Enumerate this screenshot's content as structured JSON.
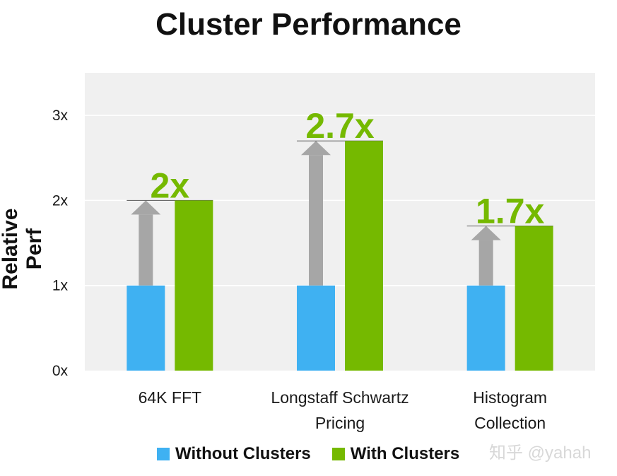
{
  "chart_data": {
    "type": "bar",
    "title": "Cluster Performance",
    "ylabel": "Relative Perf",
    "xlabel": "",
    "ylim": [
      0,
      3.5
    ],
    "yticks": [
      0,
      1,
      2,
      3
    ],
    "ytick_labels": [
      "0x",
      "1x",
      "2x",
      "3x"
    ],
    "categories": [
      [
        "64K FFT"
      ],
      [
        "Longstaff Schwartz",
        "Pricing"
      ],
      [
        "Histogram",
        "Collection"
      ]
    ],
    "series": [
      {
        "name": "Without Clusters",
        "color": "#3fb1f2",
        "values": [
          1,
          1,
          1
        ]
      },
      {
        "name": "With Clusters",
        "color": "#75b900",
        "values": [
          2,
          2.7,
          1.7
        ]
      }
    ],
    "annotations": [
      "2x",
      "2.7x",
      "1.7x"
    ],
    "annotation_color": "#75b900",
    "arrow_color": "#a6a6a6",
    "plot_background": "#f0f0f0",
    "grid": true,
    "legend_position": "bottom"
  },
  "watermark": "知乎 @yahah"
}
